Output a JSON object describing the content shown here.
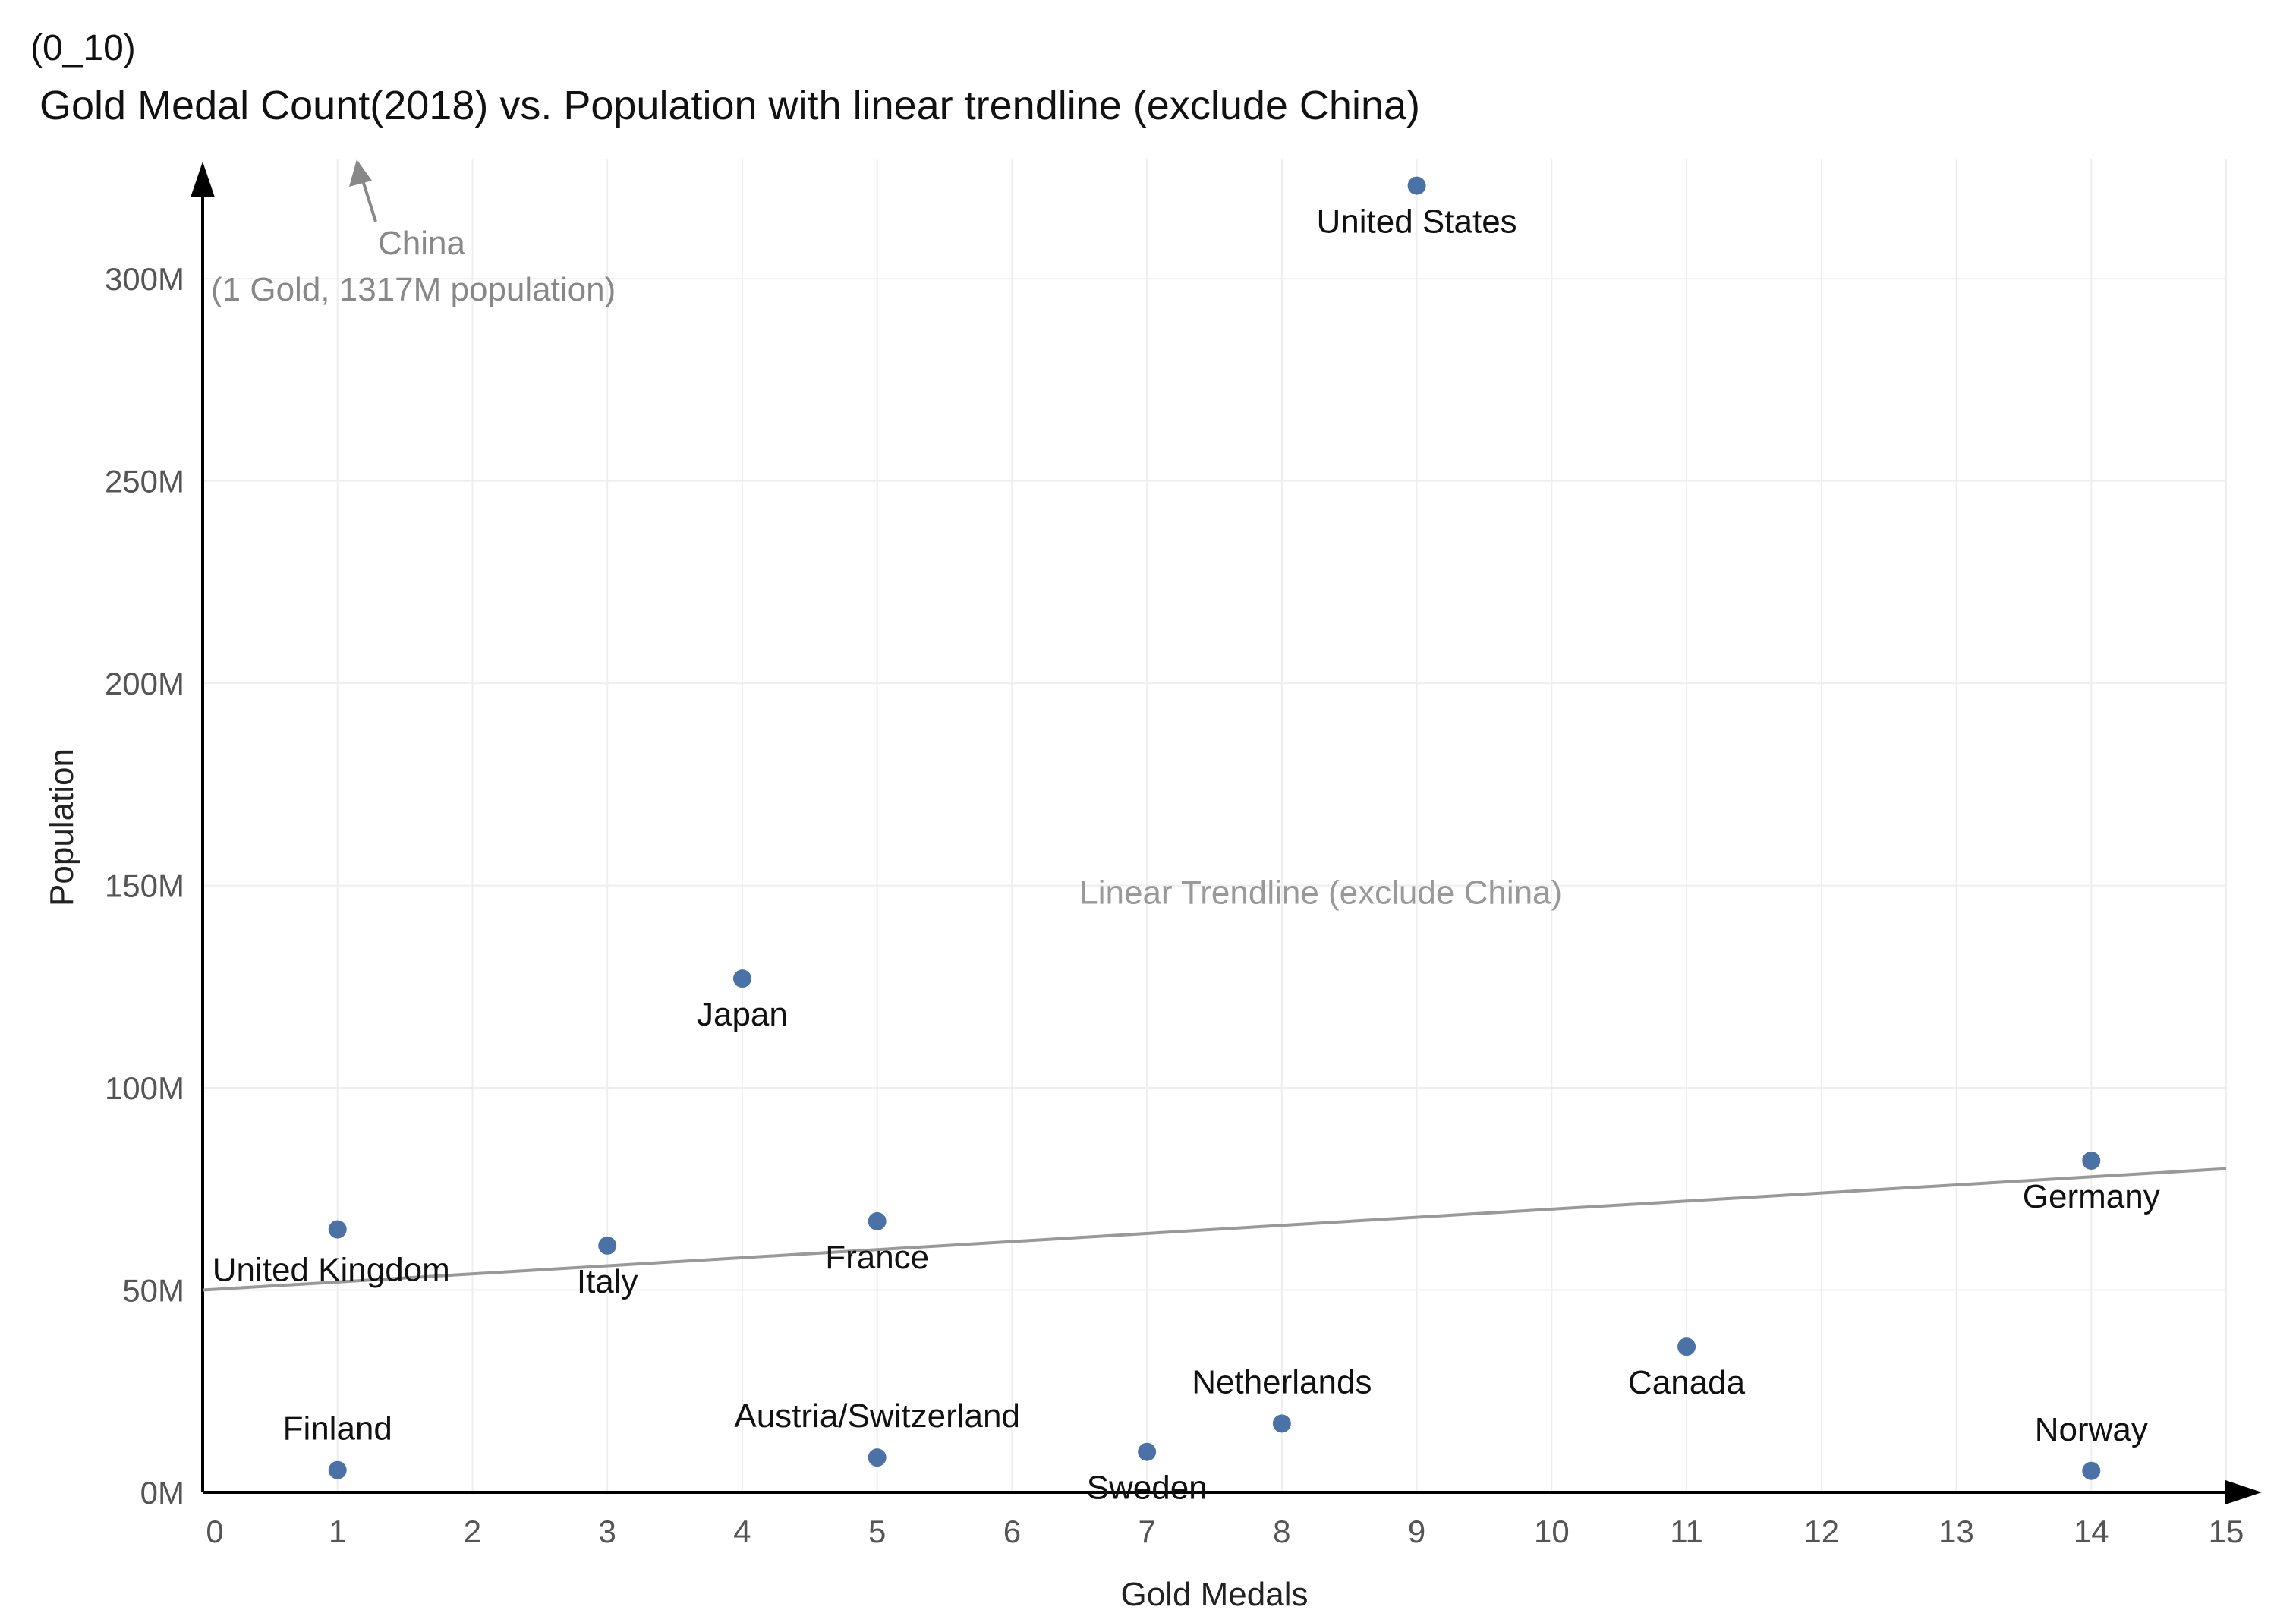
{
  "figure_label": "(0_10)",
  "chart_data": {
    "type": "scatter",
    "title": "Gold Medal Count(2018) vs. Population with linear trendline (exclude China)",
    "xlabel": "Gold Medals",
    "ylabel": "Population",
    "xlim": [
      0,
      15
    ],
    "ylim": [
      0,
      340
    ],
    "grid": true,
    "x_ticks": [
      {
        "value": 0,
        "label": "0"
      },
      {
        "value": 1,
        "label": "1"
      },
      {
        "value": 2,
        "label": "2"
      },
      {
        "value": 3,
        "label": "3"
      },
      {
        "value": 4,
        "label": "4"
      },
      {
        "value": 5,
        "label": "5"
      },
      {
        "value": 6,
        "label": "6"
      },
      {
        "value": 7,
        "label": "7"
      },
      {
        "value": 8,
        "label": "8"
      },
      {
        "value": 9,
        "label": "9"
      },
      {
        "value": 10,
        "label": "10"
      },
      {
        "value": 11,
        "label": "11"
      },
      {
        "value": 12,
        "label": "12"
      },
      {
        "value": 13,
        "label": "13"
      },
      {
        "value": 14,
        "label": "14"
      },
      {
        "value": 15,
        "label": "15"
      }
    ],
    "y_ticks": [
      {
        "value": 0,
        "label": "0M"
      },
      {
        "value": 50,
        "label": "50M"
      },
      {
        "value": 100,
        "label": "100M"
      },
      {
        "value": 150,
        "label": "150M"
      },
      {
        "value": 200,
        "label": "200M"
      },
      {
        "value": 250,
        "label": "250M"
      },
      {
        "value": 300,
        "label": "300M"
      }
    ],
    "points": [
      {
        "label": "United States",
        "x": 9,
        "y": 323,
        "label_pos": "below"
      },
      {
        "label": "Japan",
        "x": 4,
        "y": 127,
        "label_pos": "below"
      },
      {
        "label": "Germany",
        "x": 14,
        "y": 82,
        "label_pos": "below"
      },
      {
        "label": "United Kingdom",
        "x": 1,
        "y": 65,
        "label_pos": "below-right"
      },
      {
        "label": "France",
        "x": 5,
        "y": 67,
        "label_pos": "below"
      },
      {
        "label": "Italy",
        "x": 3,
        "y": 61,
        "label_pos": "below"
      },
      {
        "label": "Canada",
        "x": 11,
        "y": 36,
        "label_pos": "below"
      },
      {
        "label": "Netherlands",
        "x": 8,
        "y": 17,
        "label_pos": "above"
      },
      {
        "label": "Austria/Switzerland",
        "x": 5,
        "y": 8.6,
        "label_pos": "above"
      },
      {
        "label": "Sweden",
        "x": 7,
        "y": 10,
        "label_pos": "below"
      },
      {
        "label": "Finland",
        "x": 1,
        "y": 5.5,
        "label_pos": "above"
      },
      {
        "label": "Norway",
        "x": 14,
        "y": 5.3,
        "label_pos": "above"
      }
    ],
    "trendline": {
      "label": "Linear Trendline (exclude China)",
      "x_start": 0,
      "y_start": 50,
      "x_end": 15,
      "y_end": 80
    },
    "annotation": {
      "name": "China",
      "detail": "(1 Gold, 1317M population)",
      "x": 1,
      "y": 1317
    },
    "colors": {
      "point": "#4a72a6",
      "trendline": "#999999",
      "grid": "#eeeeee",
      "axis": "#000000",
      "tick_label": "#555555",
      "annotation": "#888888"
    }
  }
}
